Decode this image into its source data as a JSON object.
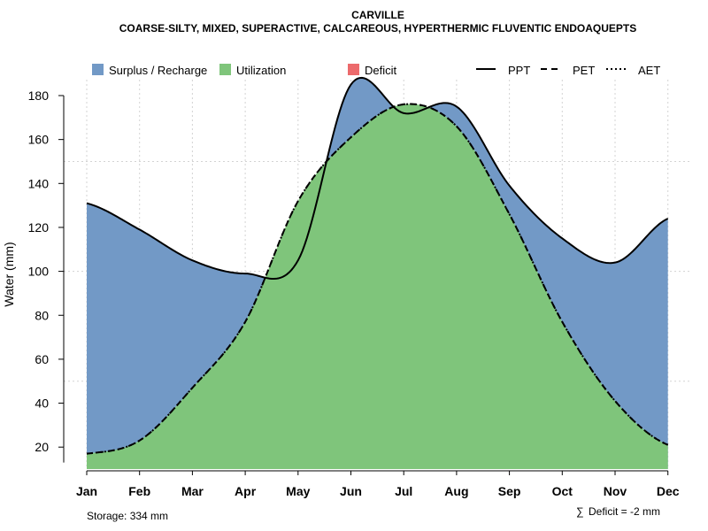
{
  "chart_data": {
    "type": "area",
    "title": "CARVILLE",
    "subtitle": "COARSE-SILTY, MIXED, SUPERACTIVE, CALCAREOUS, HYPERTHERMIC FLUVENTIC ENDOAQUEPTS",
    "xlabel": "",
    "ylabel": "Water (mm)",
    "ylim": [
      10,
      188
    ],
    "yticks": [
      20,
      40,
      60,
      80,
      100,
      120,
      140,
      160,
      180
    ],
    "categories": [
      "Jan",
      "Feb",
      "Mar",
      "Apr",
      "May",
      "Jun",
      "Jul",
      "Aug",
      "Sep",
      "Oct",
      "Nov",
      "Dec"
    ],
    "series": [
      {
        "name": "PPT",
        "style": "solid",
        "values": [
          131,
          119,
          105,
          99,
          105,
          185,
          172,
          175,
          139,
          115,
          104,
          124
        ]
      },
      {
        "name": "PET",
        "style": "dashed",
        "values": [
          17,
          23,
          47,
          77,
          132,
          161,
          176,
          166,
          126,
          77,
          41,
          21
        ]
      },
      {
        "name": "AET",
        "style": "dotted",
        "values": [
          17,
          23,
          47,
          77,
          132,
          161,
          176,
          166,
          126,
          77,
          41,
          21
        ]
      }
    ],
    "legend": [
      {
        "label": "Surplus / Recharge",
        "type": "fill",
        "color": "#7299c6"
      },
      {
        "label": "Utilization",
        "type": "fill",
        "color": "#7fc57b"
      },
      {
        "label": "Deficit",
        "type": "fill",
        "color": "#ec6a6c"
      },
      {
        "label": "PPT",
        "type": "line",
        "style": "solid"
      },
      {
        "label": "PET",
        "type": "line",
        "style": "dashed"
      },
      {
        "label": "AET",
        "type": "line",
        "style": "dotted"
      }
    ],
    "legend_position": "top",
    "grid": true,
    "colors": {
      "surplus": "#7299c6",
      "utilization": "#7fc57b",
      "deficit": "#ec6a6c",
      "line": "#000000",
      "grid": "#d3d3d3"
    }
  },
  "notes": {
    "storage": "Storage: 334 mm",
    "deficit_symbol": "∑",
    "deficit": "Deficit = -2 mm"
  }
}
